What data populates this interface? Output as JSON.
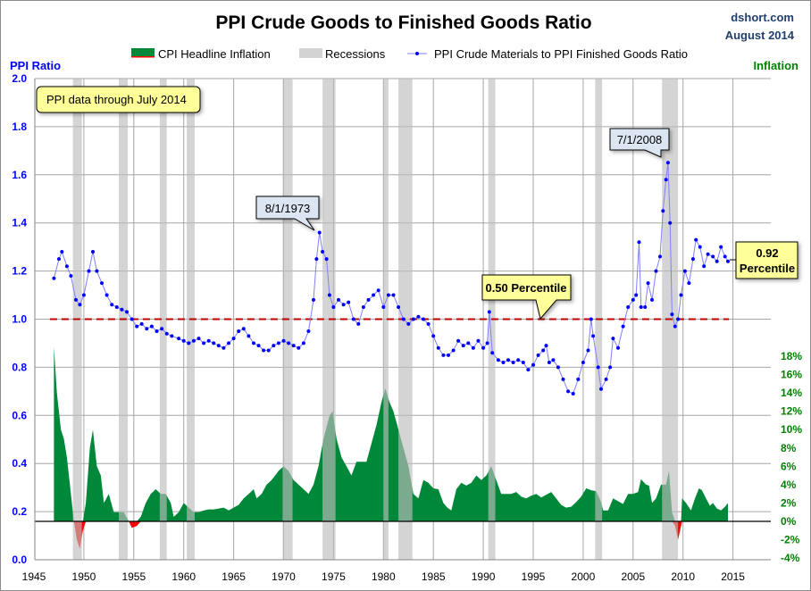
{
  "header": {
    "source": "dshort.com",
    "date": "August 2014"
  },
  "colors": {
    "inflation_positive": "#00883A",
    "inflation_negative": "#FF0000",
    "recession": "#C8C8C8",
    "ratio": "#0000FF",
    "median_line": "#C00000",
    "left_axis": "#0000FF",
    "right_axis": "#008000",
    "callout_yellow": "#FFFF99",
    "callout_blue": "#DCE6F2"
  },
  "chart_data": {
    "type": "line",
    "title": "PPI Crude Goods to Finished Goods Ratio",
    "ylabel": "PPI Ratio",
    "y2label": "Inflation",
    "xlim": [
      1945,
      2018.8
    ],
    "ylim": [
      0,
      2.0
    ],
    "y2lim": [
      -4,
      18
    ],
    "xticks": [
      "1945",
      "1950",
      "1955",
      "1960",
      "1965",
      "1970",
      "1975",
      "1980",
      "1985",
      "1990",
      "1995",
      "2000",
      "2005",
      "2010",
      "2015"
    ],
    "yticks": [
      "0.0",
      "0.2",
      "0.4",
      "0.6",
      "0.8",
      "1.0",
      "1.2",
      "1.4",
      "1.6",
      "1.8",
      "2.0"
    ],
    "y2ticks": [
      "-4%",
      "-2%",
      "0%",
      "2%",
      "4%",
      "6%",
      "8%",
      "10%",
      "12%",
      "14%",
      "16%",
      "18%"
    ],
    "grid": true,
    "legend": {
      "placement": "top-center",
      "entries": [
        "CPI Headline Inflation",
        "Recessions",
        "PPI Crude Materials to PPI Finished Goods Ratio"
      ]
    },
    "median_level": 1.0,
    "annotations": {
      "data_note": "PPI data through July 2014",
      "peak_1973": "8/1/1973",
      "peak_2008": "7/1/2008",
      "median_label": "0.50 Percentile",
      "current_value": "0.92",
      "current_label": "Percentile"
    },
    "recessions": [
      [
        1948.9,
        1949.8
      ],
      [
        1953.5,
        1954.4
      ],
      [
        1957.6,
        1958.3
      ],
      [
        1960.3,
        1961.1
      ],
      [
        1969.9,
        1970.9
      ],
      [
        1973.9,
        1975.2
      ],
      [
        1980.0,
        1980.5
      ],
      [
        1981.5,
        1982.9
      ],
      [
        1990.5,
        1991.2
      ],
      [
        2001.2,
        2001.9
      ],
      [
        2007.9,
        2009.5
      ]
    ],
    "series": [
      {
        "name": "PPI Crude Materials to PPI Finished Goods Ratio",
        "axis": "left",
        "x": [
          1947.0,
          1947.5,
          1947.8,
          1948.3,
          1948.7,
          1949.2,
          1949.6,
          1950.0,
          1950.5,
          1950.9,
          1951.3,
          1951.8,
          1952.3,
          1952.8,
          1953.3,
          1953.8,
          1954.3,
          1954.8,
          1955.3,
          1955.8,
          1956.3,
          1956.8,
          1957.3,
          1957.8,
          1958.3,
          1958.8,
          1959.5,
          1960.0,
          1960.5,
          1961.0,
          1961.5,
          1962.0,
          1962.5,
          1963.0,
          1963.5,
          1964.0,
          1964.5,
          1965.0,
          1965.5,
          1966.0,
          1966.5,
          1967.0,
          1967.5,
          1968.0,
          1968.5,
          1969.0,
          1969.5,
          1970.0,
          1970.5,
          1971.0,
          1971.5,
          1972.0,
          1972.5,
          1973.0,
          1973.3,
          1973.6,
          1973.9,
          1974.3,
          1974.6,
          1975.0,
          1975.5,
          1976.0,
          1976.5,
          1977.0,
          1977.5,
          1978.0,
          1978.5,
          1979.0,
          1979.5,
          1980.0,
          1980.5,
          1981.0,
          1981.5,
          1982.0,
          1982.5,
          1983.0,
          1983.5,
          1984.0,
          1984.5,
          1985.0,
          1985.5,
          1986.0,
          1986.5,
          1987.0,
          1987.5,
          1988.0,
          1988.5,
          1989.0,
          1989.5,
          1990.0,
          1990.4,
          1990.6,
          1990.9,
          1991.5,
          1992.0,
          1992.5,
          1993.0,
          1993.5,
          1994.0,
          1994.5,
          1995.0,
          1995.5,
          1996.0,
          1996.3,
          1996.6,
          1997.0,
          1997.5,
          1998.0,
          1998.5,
          1999.0,
          1999.5,
          2000.0,
          2000.5,
          2000.8,
          2001.0,
          2001.5,
          2001.8,
          2002.3,
          2002.7,
          2003.0,
          2003.5,
          2004.0,
          2004.5,
          2005.0,
          2005.3,
          2005.6,
          2005.8,
          2006.2,
          2006.5,
          2006.9,
          2007.3,
          2007.7,
          2008.0,
          2008.3,
          2008.5,
          2008.7,
          2008.9,
          2009.2,
          2009.5,
          2009.8,
          2010.2,
          2010.6,
          2011.0,
          2011.3,
          2011.7,
          2012.1,
          2012.5,
          2013.0,
          2013.4,
          2013.8,
          2014.2,
          2014.5
        ],
        "values": [
          1.17,
          1.25,
          1.28,
          1.22,
          1.18,
          1.08,
          1.06,
          1.1,
          1.2,
          1.28,
          1.2,
          1.15,
          1.1,
          1.06,
          1.05,
          1.04,
          1.03,
          1.0,
          0.97,
          0.98,
          0.96,
          0.97,
          0.95,
          0.96,
          0.94,
          0.93,
          0.92,
          0.91,
          0.9,
          0.91,
          0.92,
          0.9,
          0.91,
          0.9,
          0.89,
          0.88,
          0.9,
          0.92,
          0.95,
          0.96,
          0.93,
          0.9,
          0.89,
          0.87,
          0.87,
          0.89,
          0.9,
          0.91,
          0.9,
          0.89,
          0.88,
          0.9,
          0.95,
          1.08,
          1.25,
          1.36,
          1.28,
          1.25,
          1.1,
          1.05,
          1.08,
          1.06,
          1.07,
          1.0,
          0.98,
          1.05,
          1.08,
          1.1,
          1.12,
          1.05,
          1.1,
          1.1,
          1.05,
          1.0,
          0.98,
          1.0,
          1.01,
          1.0,
          0.98,
          0.93,
          0.88,
          0.85,
          0.85,
          0.87,
          0.91,
          0.89,
          0.9,
          0.88,
          0.91,
          0.88,
          0.9,
          1.03,
          0.86,
          0.83,
          0.82,
          0.83,
          0.82,
          0.83,
          0.82,
          0.79,
          0.81,
          0.85,
          0.87,
          0.89,
          0.82,
          0.83,
          0.8,
          0.75,
          0.7,
          0.69,
          0.75,
          0.82,
          0.87,
          1.0,
          0.93,
          0.8,
          0.71,
          0.75,
          0.8,
          0.92,
          0.88,
          0.97,
          1.05,
          1.08,
          1.1,
          1.32,
          1.05,
          1.05,
          1.15,
          1.08,
          1.2,
          1.26,
          1.45,
          1.58,
          1.65,
          1.4,
          1.02,
          0.97,
          1.0,
          1.1,
          1.2,
          1.15,
          1.25,
          1.33,
          1.3,
          1.22,
          1.27,
          1.26,
          1.24,
          1.3,
          1.26,
          1.24
        ]
      },
      {
        "name": "CPI Headline Inflation",
        "axis": "right",
        "x": [
          1947.0,
          1947.3,
          1947.7,
          1948.0,
          1948.3,
          1948.7,
          1949.0,
          1949.3,
          1949.6,
          1949.9,
          1950.2,
          1950.6,
          1950.9,
          1951.3,
          1951.7,
          1952.0,
          1952.5,
          1953.0,
          1953.5,
          1954.0,
          1954.5,
          1954.8,
          1955.3,
          1955.7,
          1956.2,
          1956.7,
          1957.2,
          1957.7,
          1958.2,
          1958.7,
          1959.0,
          1959.5,
          1960.0,
          1960.5,
          1961.0,
          1961.5,
          1962.0,
          1962.5,
          1963.0,
          1963.5,
          1964.0,
          1964.5,
          1965.0,
          1965.5,
          1966.0,
          1966.5,
          1967.0,
          1967.3,
          1967.8,
          1968.3,
          1968.8,
          1969.5,
          1970.0,
          1970.5,
          1971.0,
          1971.5,
          1972.0,
          1972.5,
          1973.0,
          1973.5,
          1974.0,
          1974.6,
          1974.9,
          1975.3,
          1975.8,
          1976.3,
          1976.8,
          1977.3,
          1977.8,
          1978.3,
          1978.8,
          1979.3,
          1979.8,
          1980.2,
          1980.6,
          1981.0,
          1981.5,
          1982.0,
          1982.5,
          1983.0,
          1983.5,
          1984.0,
          1984.5,
          1985.0,
          1985.5,
          1986.0,
          1986.4,
          1986.8,
          1987.3,
          1987.8,
          1988.3,
          1988.8,
          1989.3,
          1989.8,
          1990.3,
          1990.8,
          1991.3,
          1991.8,
          1992.3,
          1992.8,
          1993.3,
          1993.8,
          1994.3,
          1994.8,
          1995.3,
          1995.8,
          1996.3,
          1996.8,
          1997.3,
          1997.8,
          1998.3,
          1998.8,
          1999.3,
          1999.8,
          2000.3,
          2000.8,
          2001.3,
          2001.8,
          2002.0,
          2002.5,
          2003.0,
          2003.5,
          2004.0,
          2004.5,
          2005.0,
          2005.5,
          2005.8,
          2006.3,
          2006.6,
          2006.9,
          2007.3,
          2007.8,
          2008.3,
          2008.6,
          2008.9,
          2009.2,
          2009.5,
          2009.8,
          2009.9,
          2010.3,
          2010.8,
          2011.2,
          2011.6,
          2011.9,
          2012.3,
          2012.7,
          2013.0,
          2013.4,
          2013.8,
          2014.2,
          2014.5
        ],
        "values": [
          19,
          14,
          10,
          9,
          7,
          3,
          0,
          -2,
          -3,
          -1,
          2,
          8,
          10,
          6,
          5,
          2,
          3,
          1,
          1,
          1,
          0,
          -0.7,
          -0.5,
          0.5,
          2,
          3,
          3.5,
          3,
          3,
          2,
          0.5,
          1,
          2,
          1.5,
          1,
          1,
          1.2,
          1.3,
          1.3,
          1.4,
          1.5,
          1.2,
          1.5,
          1.8,
          2.5,
          3,
          3.5,
          2.5,
          3,
          4,
          4.5,
          5.5,
          6,
          5.5,
          4.5,
          4,
          3.5,
          3,
          4,
          6,
          9,
          11.5,
          12,
          9,
          7,
          6,
          5,
          6.5,
          6.5,
          6.5,
          8.5,
          10.5,
          13,
          14.5,
          13,
          12,
          10,
          8,
          6,
          3,
          2.5,
          4.5,
          4.2,
          3.6,
          3.5,
          2,
          1.5,
          1.2,
          3.5,
          4.2,
          3.9,
          4.2,
          5,
          4.5,
          5,
          6,
          4.5,
          3,
          3,
          3,
          3.2,
          2.7,
          2.5,
          2.8,
          3,
          2.6,
          2.9,
          3.2,
          2.5,
          1.8,
          1.5,
          1.6,
          2.1,
          2.7,
          3.6,
          3.4,
          3.3,
          2.1,
          1.2,
          1.2,
          2.5,
          2.2,
          1.9,
          3,
          3,
          3.2,
          4.6,
          4,
          3.9,
          2,
          2.5,
          4,
          4,
          5.5,
          1,
          -0.5,
          -2,
          -0.5,
          2.5,
          2,
          1.2,
          2.5,
          3.6,
          3.4,
          2.5,
          1.7,
          2,
          1.4,
          1.2,
          1.6,
          2
        ]
      }
    ]
  }
}
